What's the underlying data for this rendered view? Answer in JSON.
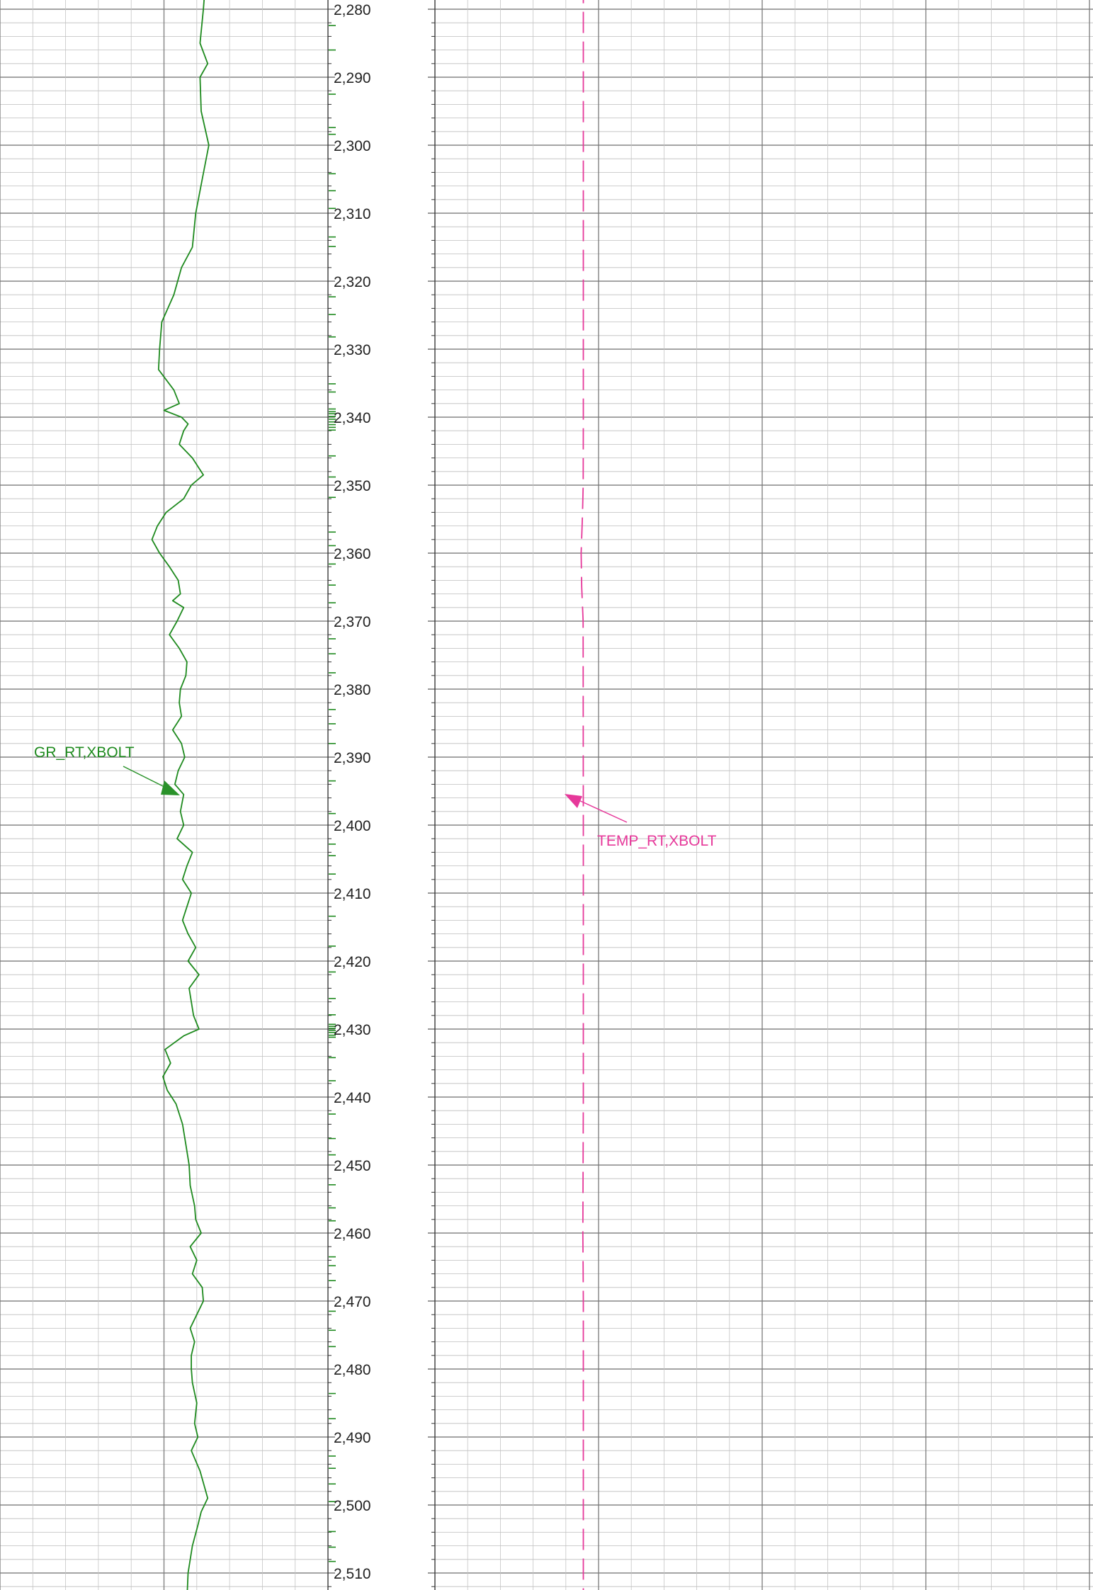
{
  "chart_data": [
    {
      "type": "line",
      "track": "left",
      "series": [
        {
          "name": "GR_RT,XBOLT",
          "color": "#1e8a1e",
          "line_style": "solid",
          "depth": [
            2276,
            2280,
            2285,
            2288,
            2290,
            2295,
            2300,
            2305,
            2310,
            2315,
            2318,
            2322,
            2326,
            2330,
            2333,
            2336,
            2338,
            2339,
            2340,
            2341,
            2342,
            2344,
            2346,
            2348.5,
            2350,
            2352,
            2354,
            2356,
            2358,
            2360,
            2362,
            2364,
            2366,
            2367,
            2368,
            2370,
            2372,
            2374,
            2376,
            2378,
            2380,
            2382,
            2384,
            2386,
            2388,
            2390,
            2392,
            2394,
            2395.5,
            2398,
            2400,
            2402,
            2404,
            2406,
            2408,
            2410,
            2412,
            2414,
            2416,
            2418,
            2420,
            2422,
            2424,
            2426,
            2428,
            2430,
            2431,
            2433,
            2435,
            2437,
            2439,
            2441,
            2444,
            2447,
            2450,
            2453,
            2456,
            2458,
            2460,
            2462,
            2464,
            2466,
            2468,
            2470,
            2472,
            2474,
            2476,
            2478,
            2480,
            2482,
            2485,
            2488,
            2490,
            2492,
            2495,
            2499,
            2501,
            2503,
            2506,
            2510,
            2514
          ],
          "value": [
            58.8,
            58.6,
            58.3,
            59.0,
            58.3,
            58.4,
            59.1,
            58.5,
            57.9,
            57.6,
            56.6,
            55.9,
            54.8,
            54.6,
            54.5,
            55.9,
            56.4,
            55.0,
            56.6,
            57.2,
            56.8,
            56.4,
            57.6,
            58.6,
            57.5,
            56.8,
            55.2,
            54.4,
            53.9,
            54.6,
            55.5,
            56.3,
            56.5,
            55.8,
            56.8,
            56.2,
            55.5,
            56.4,
            57.1,
            57.0,
            56.5,
            56.4,
            56.6,
            55.8,
            56.6,
            56.9,
            56.3,
            56.0,
            56.8,
            56.5,
            56.8,
            56.2,
            57.6,
            57.1,
            56.7,
            57.5,
            57.1,
            56.7,
            57.2,
            57.9,
            57.2,
            58.2,
            57.3,
            57.5,
            57.7,
            58.2,
            56.8,
            55.1,
            55.6,
            54.9,
            55.3,
            56.1,
            56.7,
            57.0,
            57.3,
            57.4,
            57.8,
            57.9,
            58.4,
            57.4,
            58.0,
            57.6,
            58.5,
            58.6,
            58.0,
            57.4,
            57.8,
            57.5,
            57.5,
            57.6,
            58.0,
            57.8,
            58.1,
            57.5,
            58.3,
            59.0,
            58.4,
            58.1,
            57.6,
            57.2,
            57.1
          ]
        }
      ],
      "xlim": [
        40,
        70
      ],
      "ylim": [
        2280,
        2515
      ],
      "label": "GR_RT,XBOLT",
      "grid": true
    },
    {
      "type": "line",
      "track": "right",
      "series": [
        {
          "name": "TEMP_RT,XBOLT",
          "color": "#e6389a",
          "line_style": "dashed",
          "depth": [
            2276,
            2340,
            2350,
            2355,
            2360,
            2365,
            2370,
            2400,
            2440,
            2455,
            2460,
            2465,
            2470,
            2514
          ],
          "value": [
            22.55,
            22.55,
            22.53,
            22.4,
            22.22,
            22.3,
            22.52,
            22.55,
            22.55,
            22.5,
            22.48,
            22.52,
            22.55,
            22.55
          ]
        }
      ],
      "xlim": [
        0,
        100
      ],
      "ylim": [
        2280,
        2515
      ],
      "label": "TEMP_RT,XBOLT",
      "grid": true
    }
  ],
  "depth_track": {
    "labels": [
      "2,280",
      "2,290",
      "2,300",
      "2,310",
      "2,320",
      "2,330",
      "2,340",
      "2,350",
      "2,360",
      "2,370",
      "2,380",
      "2,390",
      "2,400",
      "2,410",
      "2,420",
      "2,430",
      "2,440",
      "2,450",
      "2,460",
      "2,470",
      "2,480",
      "2,490",
      "2,500",
      "2,510"
    ],
    "values": [
      2280,
      2290,
      2300,
      2310,
      2320,
      2330,
      2340,
      2350,
      2360,
      2370,
      2380,
      2390,
      2400,
      2410,
      2420,
      2430,
      2440,
      2450,
      2460,
      2470,
      2480,
      2490,
      2500,
      2510
    ],
    "sample_marks": [
      2282.4,
      2286.0,
      2292.5,
      2297.4,
      2298.4,
      2304.2,
      2306.7,
      2309.3,
      2313.5,
      2314.9,
      2322.3,
      2324.9,
      2328.2,
      2335.1,
      2336.3,
      2338.8,
      2339.2,
      2339.5,
      2339.9,
      2340.3,
      2340.7,
      2341.1,
      2341.5,
      2341.9,
      2345.7,
      2348.8,
      2351.8,
      2356.9,
      2358.9,
      2361.6,
      2364.7,
      2367.3,
      2372.6,
      2374.8,
      2377.6,
      2383.0,
      2385.1,
      2388.0,
      2393.5,
      2398.3,
      2402.8,
      2404.5,
      2407.2,
      2413.4,
      2417.8,
      2421.6,
      2425.5,
      2427.9,
      2429.3,
      2429.6,
      2429.9,
      2430.2,
      2430.5,
      2430.9,
      2431.2,
      2434.2,
      2437.6,
      2442.5,
      2446.1,
      2448.5,
      2452.9,
      2456.3,
      2458.2,
      2463.5,
      2464.8,
      2467.0,
      2471.5,
      2474.3,
      2476.7,
      2483.6,
      2487.3,
      2492.8,
      2494.6,
      2496.9,
      2499.5,
      2503.9,
      2506.2,
      2508.3,
      2512.6,
      2514.2
    ],
    "color": "#1e8a1e"
  }
}
